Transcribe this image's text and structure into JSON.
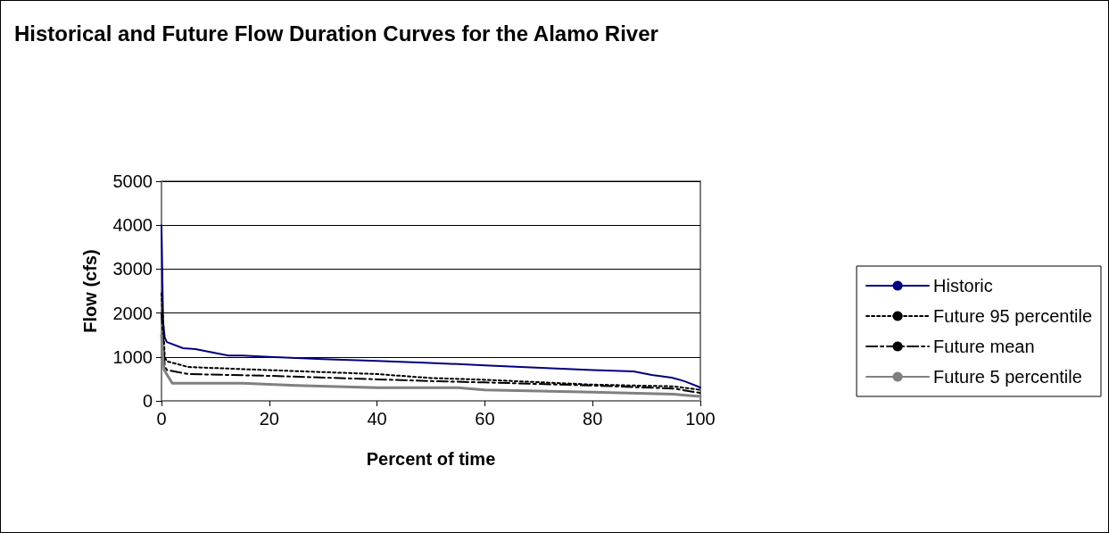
{
  "chart_data": {
    "type": "line",
    "title": "Historical and Future Flow Duration Curves for the Alamo River",
    "xlabel": "Percent of time",
    "ylabel": "Flow (cfs)",
    "xlim": [
      0,
      100
    ],
    "xticks": [
      0,
      20,
      40,
      60,
      80,
      100
    ],
    "ylim": [
      0,
      5000
    ],
    "yticks": [
      0,
      1000,
      2000,
      3000,
      4000,
      5000
    ],
    "grid": "y",
    "legend": "right",
    "marker": "none",
    "series": [
      {
        "name": "Historic",
        "color": "#000080",
        "line_style": "solid",
        "x": [
          0,
          0.3,
          0.6,
          1,
          4,
          6.3,
          12.4,
          15,
          20,
          30,
          40,
          48.7,
          60,
          70.4,
          80,
          87.6,
          91,
          94.7,
          97,
          99.7,
          100
        ],
        "values": [
          4000,
          1800,
          1440,
          1340,
          1200,
          1180,
          1030,
          1030,
          1000,
          950,
          910,
          870,
          810,
          750,
          700,
          670,
          590,
          530,
          450,
          320,
          300
        ]
      },
      {
        "name": "Future 95 percentile",
        "color": "#000000",
        "line_style": "dotted",
        "x": [
          0,
          0.3,
          0.6,
          1,
          5,
          20,
          40,
          50,
          60,
          80,
          95,
          100
        ],
        "values": [
          2450,
          1800,
          1000,
          900,
          770,
          700,
          610,
          520,
          480,
          370,
          330,
          250
        ]
      },
      {
        "name": "Future mean",
        "color": "#000000",
        "line_style": "dashed",
        "x": [
          0,
          0.3,
          0.6,
          1,
          5,
          20,
          40,
          50,
          60,
          80,
          95,
          100
        ],
        "values": [
          2000,
          1500,
          800,
          700,
          610,
          570,
          490,
          450,
          420,
          350,
          280,
          180
        ]
      },
      {
        "name": "Future 5 percentile",
        "color": "#808080",
        "line_style": "solid",
        "x": [
          0,
          0.3,
          0.5,
          2,
          15,
          25,
          40,
          55,
          60,
          80,
          95,
          100
        ],
        "values": [
          1500,
          900,
          700,
          400,
          400,
          350,
          300,
          300,
          250,
          200,
          150,
          100
        ]
      }
    ]
  }
}
